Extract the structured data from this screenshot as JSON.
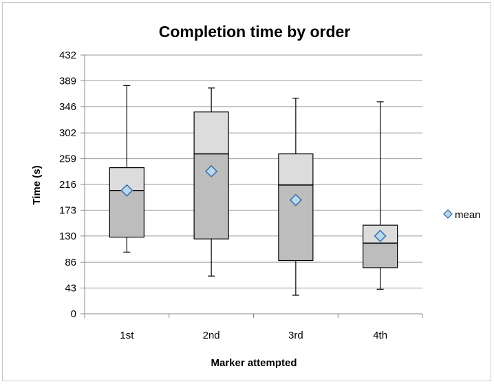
{
  "chart_data": {
    "type": "box",
    "title": "Completion time by order",
    "xlabel": "Marker attempted",
    "ylabel": "Time (s)",
    "ylim": [
      0,
      432
    ],
    "yticks": [
      "0",
      "43",
      "86",
      "130",
      "173",
      "216",
      "259",
      "302",
      "346",
      "389",
      "432"
    ],
    "grid": true,
    "legend": {
      "position": "right",
      "entries": [
        {
          "name": "mean",
          "marker": "diamond"
        }
      ]
    },
    "categories": [
      "1st",
      "2nd",
      "3rd",
      "4th"
    ],
    "boxes": [
      {
        "category": "1st",
        "min": 103,
        "q1": 128,
        "median": 206,
        "q3": 244,
        "max": 381,
        "mean": 206
      },
      {
        "category": "2nd",
        "min": 63,
        "q1": 125,
        "median": 267,
        "q3": 337,
        "max": 377,
        "mean": 238
      },
      {
        "category": "3rd",
        "min": 31,
        "q1": 89,
        "median": 215,
        "q3": 267,
        "max": 360,
        "mean": 190
      },
      {
        "category": "4th",
        "min": 41,
        "q1": 77,
        "median": 118,
        "q3": 148,
        "max": 354,
        "mean": 130
      }
    ],
    "colors": {
      "lower_box": "#bdbdbd",
      "upper_box": "#dcdcdc",
      "mean_fill": "#b8d8f0",
      "mean_stroke": "#3a6ea5",
      "grid": "#9a9a9a"
    }
  }
}
